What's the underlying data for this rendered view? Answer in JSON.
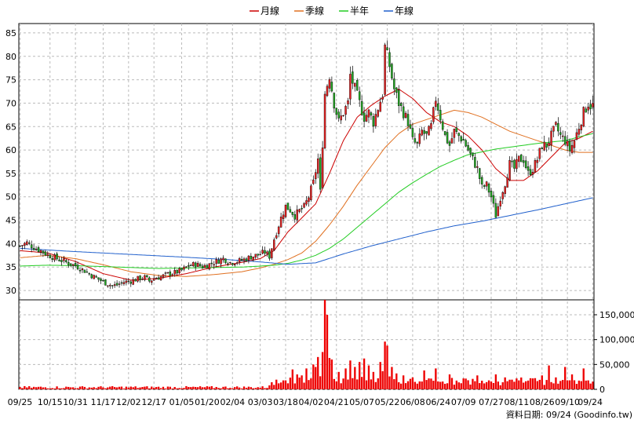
{
  "chart_data": {
    "type": "candlestick",
    "legend": [
      {
        "label": "月線",
        "color": "#cc0000"
      },
      {
        "label": "季線",
        "color": "#e07020"
      },
      {
        "label": "半年",
        "color": "#22cc22"
      },
      {
        "label": "年線",
        "color": "#1f5fcc"
      }
    ],
    "price_axis": {
      "ylim": [
        28,
        87
      ],
      "ticks": [
        30,
        35,
        40,
        45,
        50,
        55,
        60,
        65,
        70,
        75,
        80,
        85
      ]
    },
    "volume_axis": {
      "ylim": [
        0,
        180000
      ],
      "ticks": [
        0,
        50000,
        100000,
        150000
      ],
      "tick_labels": [
        "0",
        "50,000",
        "100,000",
        "150,000"
      ]
    },
    "x_labels": [
      {
        "label": "09/25",
        "i": 0
      },
      {
        "label": "10/15",
        "i": 13
      },
      {
        "label": "10/31",
        "i": 24
      },
      {
        "label": "11/17",
        "i": 36
      },
      {
        "label": "12/02",
        "i": 47
      },
      {
        "label": "12/17",
        "i": 58
      },
      {
        "label": "01/05",
        "i": 70
      },
      {
        "label": "01/20",
        "i": 81
      },
      {
        "label": "02/04",
        "i": 92
      },
      {
        "label": "03/03",
        "i": 104
      },
      {
        "label": "03/18",
        "i": 115
      },
      {
        "label": "04/02",
        "i": 126
      },
      {
        "label": "04/21",
        "i": 137
      },
      {
        "label": "05/07",
        "i": 148
      },
      {
        "label": "05/22",
        "i": 159
      },
      {
        "label": "06/08",
        "i": 170
      },
      {
        "label": "06/24",
        "i": 181
      },
      {
        "label": "07/09",
        "i": 192
      },
      {
        "label": "07/27",
        "i": 204
      },
      {
        "label": "08/11",
        "i": 215
      },
      {
        "label": "08/26",
        "i": 226
      },
      {
        "label": "09/10",
        "i": 237
      },
      {
        "label": "09/24",
        "i": 248
      }
    ],
    "close_keyframes": [
      [
        0,
        39.5
      ],
      [
        3,
        40.2
      ],
      [
        6,
        39.2
      ],
      [
        9,
        38.5
      ],
      [
        12,
        37.6
      ],
      [
        16,
        36.8
      ],
      [
        20,
        36.0
      ],
      [
        24,
        35.3
      ],
      [
        28,
        34.2
      ],
      [
        31,
        33.2
      ],
      [
        34,
        32.4
      ],
      [
        37,
        31.6
      ],
      [
        40,
        31.0
      ],
      [
        42,
        31.2
      ],
      [
        45,
        31.8
      ],
      [
        48,
        32.0
      ],
      [
        51,
        32.5
      ],
      [
        54,
        32.8
      ],
      [
        56,
        32.0
      ],
      [
        58,
        32.6
      ],
      [
        61,
        32.9
      ],
      [
        64,
        33.5
      ],
      [
        67,
        33.8
      ],
      [
        70,
        34.3
      ],
      [
        73,
        35.3
      ],
      [
        76,
        35.6
      ],
      [
        79,
        35.1
      ],
      [
        82,
        35.6
      ],
      [
        85,
        36.2
      ],
      [
        88,
        36.8
      ],
      [
        91,
        36.0
      ],
      [
        94,
        36.2
      ],
      [
        97,
        36.6
      ],
      [
        100,
        37.2
      ],
      [
        103,
        37.6
      ],
      [
        106,
        38.2
      ],
      [
        108,
        37.3
      ],
      [
        110,
        41.0
      ],
      [
        113,
        45.5
      ],
      [
        115,
        48.0
      ],
      [
        117,
        47.2
      ],
      [
        119,
        46.0
      ],
      [
        121,
        47.0
      ],
      [
        123,
        47.8
      ],
      [
        125,
        50.0
      ],
      [
        127,
        53.0
      ],
      [
        129,
        58.0
      ],
      [
        130,
        51.0
      ],
      [
        132,
        72.0
      ],
      [
        134,
        76.0
      ],
      [
        136,
        70.0
      ],
      [
        138,
        66.0
      ],
      [
        140,
        68.0
      ],
      [
        142,
        70.0
      ],
      [
        143,
        76.0
      ],
      [
        145,
        73.0
      ],
      [
        147,
        70.0
      ],
      [
        149,
        67.0
      ],
      [
        151,
        68.0
      ],
      [
        153,
        66.0
      ],
      [
        155,
        69.0
      ],
      [
        157,
        72.0
      ],
      [
        158,
        82.0
      ],
      [
        160,
        78.0
      ],
      [
        162,
        73.0
      ],
      [
        164,
        70.0
      ],
      [
        166,
        68.0
      ],
      [
        168,
        66.0
      ],
      [
        170,
        62.0
      ],
      [
        172,
        61.0
      ],
      [
        174,
        64.0
      ],
      [
        176,
        63.0
      ],
      [
        178,
        65.0
      ],
      [
        180,
        71.0
      ],
      [
        182,
        67.0
      ],
      [
        184,
        63.0
      ],
      [
        186,
        61.0
      ],
      [
        188,
        64.0
      ],
      [
        190,
        63.0
      ],
      [
        192,
        62.0
      ],
      [
        194,
        60.0
      ],
      [
        196,
        58.0
      ],
      [
        198,
        56.0
      ],
      [
        200,
        52.0
      ],
      [
        202,
        52.5
      ],
      [
        204,
        50.0
      ],
      [
        206,
        46.0
      ],
      [
        208,
        50.0
      ],
      [
        210,
        53.0
      ],
      [
        212,
        57.0
      ],
      [
        214,
        56.0
      ],
      [
        216,
        58.0
      ],
      [
        218,
        58.0
      ],
      [
        220,
        55.0
      ],
      [
        222,
        56.0
      ],
      [
        224,
        58.0
      ],
      [
        226,
        61.0
      ],
      [
        228,
        61.0
      ],
      [
        230,
        63.0
      ],
      [
        232,
        65.0
      ],
      [
        234,
        63.0
      ],
      [
        236,
        62.0
      ],
      [
        238,
        60.0
      ],
      [
        240,
        62.0
      ],
      [
        242,
        65.0
      ],
      [
        244,
        68.0
      ],
      [
        246,
        70.0
      ],
      [
        247,
        69.5
      ]
    ],
    "moving_averages": {
      "月線": [
        [
          0,
          38.5
        ],
        [
          12,
          38.0
        ],
        [
          24,
          36.2
        ],
        [
          36,
          33.6
        ],
        [
          48,
          32.2
        ],
        [
          60,
          32.6
        ],
        [
          72,
          33.6
        ],
        [
          84,
          35.0
        ],
        [
          96,
          36.0
        ],
        [
          104,
          36.8
        ],
        [
          110,
          38.5
        ],
        [
          116,
          42.5
        ],
        [
          122,
          45.5
        ],
        [
          128,
          48.5
        ],
        [
          134,
          55.0
        ],
        [
          140,
          62.0
        ],
        [
          146,
          67.0
        ],
        [
          152,
          69.5
        ],
        [
          158,
          71.5
        ],
        [
          164,
          73.0
        ],
        [
          170,
          71.0
        ],
        [
          176,
          68.0
        ],
        [
          182,
          66.0
        ],
        [
          188,
          65.0
        ],
        [
          194,
          63.0
        ],
        [
          200,
          60.0
        ],
        [
          206,
          56.0
        ],
        [
          212,
          53.5
        ],
        [
          218,
          53.5
        ],
        [
          224,
          55.5
        ],
        [
          230,
          58.5
        ],
        [
          236,
          61.5
        ],
        [
          242,
          62.5
        ],
        [
          248,
          64.0
        ]
      ],
      "季線": [
        [
          0,
          37.0
        ],
        [
          12,
          37.5
        ],
        [
          24,
          36.8
        ],
        [
          36,
          35.5
        ],
        [
          48,
          34.0
        ],
        [
          60,
          33.2
        ],
        [
          72,
          33.0
        ],
        [
          84,
          33.4
        ],
        [
          96,
          34.0
        ],
        [
          104,
          34.8
        ],
        [
          110,
          35.6
        ],
        [
          116,
          36.6
        ],
        [
          122,
          38.0
        ],
        [
          128,
          40.5
        ],
        [
          134,
          44.0
        ],
        [
          140,
          48.0
        ],
        [
          146,
          52.5
        ],
        [
          152,
          56.5
        ],
        [
          158,
          60.5
        ],
        [
          164,
          63.5
        ],
        [
          170,
          65.5
        ],
        [
          176,
          66.5
        ],
        [
          182,
          67.5
        ],
        [
          188,
          68.5
        ],
        [
          194,
          68.0
        ],
        [
          200,
          67.0
        ],
        [
          206,
          65.5
        ],
        [
          212,
          64.0
        ],
        [
          218,
          63.0
        ],
        [
          224,
          62.0
        ],
        [
          230,
          61.0
        ],
        [
          236,
          60.0
        ],
        [
          242,
          59.5
        ],
        [
          248,
          59.5
        ]
      ],
      "半年": [
        [
          0,
          35.2
        ],
        [
          12,
          35.4
        ],
        [
          24,
          35.3
        ],
        [
          36,
          35.1
        ],
        [
          48,
          34.9
        ],
        [
          60,
          34.7
        ],
        [
          72,
          34.8
        ],
        [
          84,
          34.9
        ],
        [
          96,
          35.0
        ],
        [
          104,
          35.2
        ],
        [
          110,
          35.4
        ],
        [
          116,
          35.8
        ],
        [
          122,
          36.5
        ],
        [
          128,
          37.5
        ],
        [
          134,
          39.0
        ],
        [
          140,
          41.0
        ],
        [
          146,
          43.5
        ],
        [
          152,
          46.0
        ],
        [
          158,
          48.5
        ],
        [
          164,
          51.0
        ],
        [
          170,
          53.0
        ],
        [
          176,
          54.8
        ],
        [
          182,
          56.5
        ],
        [
          188,
          57.8
        ],
        [
          194,
          59.0
        ],
        [
          200,
          59.6
        ],
        [
          206,
          60.2
        ],
        [
          212,
          60.6
        ],
        [
          218,
          61.0
        ],
        [
          224,
          61.4
        ],
        [
          230,
          61.7
        ],
        [
          236,
          62.0
        ],
        [
          242,
          62.8
        ],
        [
          248,
          63.5
        ]
      ],
      "年線": [
        [
          0,
          39.0
        ],
        [
          24,
          38.3
        ],
        [
          48,
          37.7
        ],
        [
          72,
          37.1
        ],
        [
          96,
          36.4
        ],
        [
          104,
          36.1
        ],
        [
          116,
          35.6
        ],
        [
          128,
          35.9
        ],
        [
          140,
          37.8
        ],
        [
          152,
          39.5
        ],
        [
          164,
          41.0
        ],
        [
          176,
          42.5
        ],
        [
          188,
          43.8
        ],
        [
          200,
          44.8
        ],
        [
          212,
          46.0
        ],
        [
          224,
          47.2
        ],
        [
          236,
          48.5
        ],
        [
          248,
          49.8
        ]
      ]
    },
    "volume_spikes": [
      [
        108,
        8000
      ],
      [
        112,
        12000
      ],
      [
        115,
        18000
      ],
      [
        118,
        40000
      ],
      [
        120,
        30000
      ],
      [
        122,
        28000
      ],
      [
        124,
        42000
      ],
      [
        126,
        22000
      ],
      [
        127,
        50000
      ],
      [
        128,
        45000
      ],
      [
        129,
        65000
      ],
      [
        131,
        75000
      ],
      [
        132,
        180000
      ],
      [
        133,
        150000
      ],
      [
        135,
        60000
      ],
      [
        138,
        35000
      ],
      [
        141,
        42000
      ],
      [
        143,
        58000
      ],
      [
        145,
        45000
      ],
      [
        147,
        55000
      ],
      [
        149,
        62000
      ],
      [
        151,
        48000
      ],
      [
        153,
        35000
      ],
      [
        156,
        55000
      ],
      [
        158,
        96000
      ],
      [
        159,
        88000
      ],
      [
        161,
        45000
      ],
      [
        163,
        32000
      ],
      [
        166,
        28000
      ],
      [
        170,
        24000
      ],
      [
        175,
        38000
      ],
      [
        180,
        42000
      ],
      [
        186,
        30000
      ],
      [
        192,
        22000
      ],
      [
        198,
        28000
      ],
      [
        203,
        18000
      ],
      [
        206,
        30000
      ],
      [
        210,
        24000
      ],
      [
        216,
        18000
      ],
      [
        222,
        22000
      ],
      [
        226,
        28000
      ],
      [
        229,
        48000
      ],
      [
        232,
        24000
      ],
      [
        236,
        45000
      ],
      [
        239,
        30000
      ],
      [
        244,
        42000
      ],
      [
        246,
        18000
      ]
    ],
    "source_text": "資料日期: 09/24 (Goodinfo.tw)"
  }
}
